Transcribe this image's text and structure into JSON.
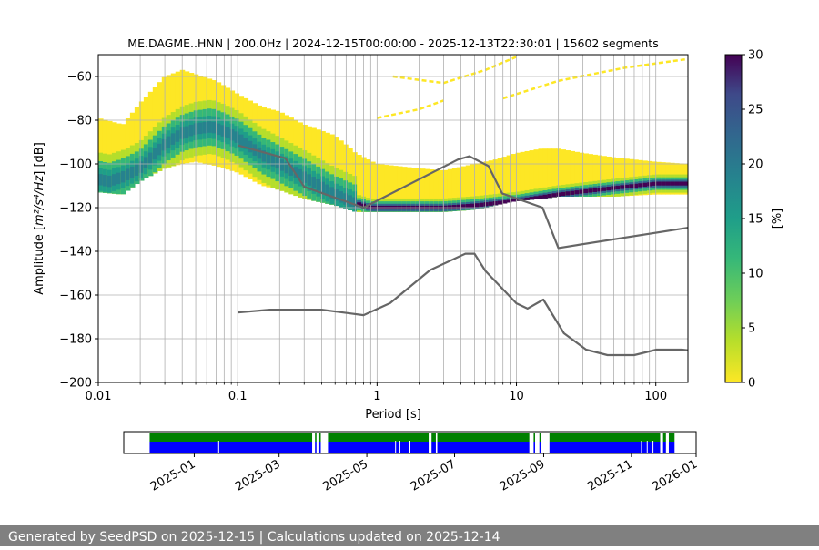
{
  "chart_data": {
    "type": "heatmap",
    "title": "ME.DAGME..HNN | 200.0Hz | 2024-12-15T00:00:00 - 2025-12-13T22:30:01 | 15602 segments",
    "xlabel": "Period [s]",
    "ylabel_prefix": "Amplitude [",
    "ylabel_math": "m²/s⁴/Hz",
    "ylabel_suffix": "] [dB]",
    "xscale": "log",
    "xlim": [
      0.01,
      170
    ],
    "ylim": [
      -200,
      -50
    ],
    "xticks": [
      {
        "value": 0.01,
        "label": "0.01"
      },
      {
        "value": 0.1,
        "label": "0.1"
      },
      {
        "value": 1,
        "label": "1"
      },
      {
        "value": 10,
        "label": "10"
      },
      {
        "value": 100,
        "label": "100"
      }
    ],
    "yticks": [
      {
        "value": -60,
        "label": "−60"
      },
      {
        "value": -80,
        "label": "−80"
      },
      {
        "value": -100,
        "label": "−100"
      },
      {
        "value": -120,
        "label": "−120"
      },
      {
        "value": -140,
        "label": "−140"
      },
      {
        "value": -160,
        "label": "−160"
      },
      {
        "value": -180,
        "label": "−180"
      },
      {
        "value": -200,
        "label": "−200"
      }
    ],
    "grid": true,
    "colorbar": {
      "label": "[%]",
      "range": [
        0,
        30
      ],
      "ticks": [
        {
          "value": 0,
          "label": "0"
        },
        {
          "value": 5,
          "label": "5"
        },
        {
          "value": 10,
          "label": "10"
        },
        {
          "value": 15,
          "label": "15"
        },
        {
          "value": 20,
          "label": "20"
        },
        {
          "value": 25,
          "label": "25"
        },
        {
          "value": 30,
          "label": "30"
        }
      ]
    },
    "psd_mode": {
      "name": "mode",
      "periods": [
        0.01,
        0.012,
        0.015,
        0.02,
        0.03,
        0.04,
        0.05,
        0.065,
        0.08,
        0.1,
        0.15,
        0.2,
        0.3,
        0.5,
        0.7,
        0.9,
        1.2,
        2,
        3,
        5,
        7,
        10,
        20,
        50,
        100,
        170
      ],
      "values": [
        -107,
        -108,
        -106,
        -102,
        -91,
        -86,
        -84,
        -83,
        -85,
        -88,
        -96,
        -100,
        -106,
        -114,
        -118,
        -120,
        -120,
        -120,
        -120,
        -119,
        -118,
        -117,
        -114,
        -111,
        -109,
        -109
      ]
    },
    "psd_band": {
      "name": "probability-spread",
      "periods": [
        0.01,
        0.015,
        0.02,
        0.03,
        0.04,
        0.05,
        0.07,
        0.1,
        0.15,
        0.2,
        0.3,
        0.5,
        0.7,
        1,
        2,
        3,
        5,
        7,
        10,
        15,
        20,
        30,
        50,
        100,
        170
      ],
      "upper": [
        -79,
        -82,
        -72,
        -60,
        -57,
        -59,
        -62,
        -68,
        -74,
        -76,
        -82,
        -87,
        -95,
        -100,
        -102,
        -103,
        -100,
        -98,
        -95,
        -93,
        -93,
        -95,
        -97,
        -99,
        -100
      ],
      "lower": [
        -113,
        -114,
        -108,
        -102,
        -100,
        -99,
        -101,
        -104,
        -110,
        -112,
        -116,
        -119,
        -122,
        -122,
        -122,
        -122,
        -121,
        -119,
        -117,
        -116,
        -115,
        -115,
        -115,
        -114,
        -114
      ]
    },
    "spurious_peaks": [
      {
        "periods": [
          1.3,
          3,
          6,
          10
        ],
        "values": [
          -60,
          -63,
          -57,
          -51
        ]
      },
      {
        "periods": [
          8,
          20,
          60,
          170
        ],
        "values": [
          -70,
          -62,
          -56,
          -52
        ]
      },
      {
        "periods": [
          1.0,
          2.0,
          3.0
        ],
        "values": [
          -79,
          -75,
          -71
        ]
      }
    ],
    "noise_models": [
      {
        "name": "NHNM",
        "periods": [
          0.1,
          0.22,
          0.3,
          0.8,
          3.8,
          4.6,
          6.3,
          7.9,
          15.4,
          20,
          354.8
        ],
        "values": [
          -91.5,
          -97.4,
          -110.5,
          -120,
          -98,
          -96.5,
          -101,
          -113.5,
          -120,
          -138.5,
          -126
        ]
      },
      {
        "name": "NLNM",
        "periods": [
          0.1,
          0.17,
          0.4,
          0.8,
          1.24,
          2.4,
          4.3,
          5,
          6,
          10,
          12,
          15.6,
          21.9,
          31.6,
          45,
          70,
          101,
          154,
          328
        ],
        "values": [
          -168,
          -166.7,
          -166.7,
          -169.2,
          -163.7,
          -148.6,
          -141.1,
          -141.1,
          -149,
          -163.8,
          -166.2,
          -162.1,
          -177.5,
          -185,
          -187.5,
          -187.5,
          -185,
          -185,
          -187.5
        ]
      }
    ],
    "availability": {
      "xlim_days": [
        -18,
        380
      ],
      "tick_labels": [
        {
          "day": 31,
          "label": "2025-01"
        },
        {
          "day": 90,
          "label": "2025-03"
        },
        {
          "day": 151,
          "label": "2025-05"
        },
        {
          "day": 212,
          "label": "2025-07"
        },
        {
          "day": 274,
          "label": "2025-09"
        },
        {
          "day": 335,
          "label": "2025-11"
        },
        {
          "day": 396,
          "label": "2026-01"
        }
      ],
      "data_segments_days": [
        [
          0,
          113
        ],
        [
          115,
          116
        ],
        [
          118,
          119
        ],
        [
          124,
          194
        ],
        [
          196,
          199
        ],
        [
          200,
          264
        ],
        [
          267,
          268
        ],
        [
          271,
          272
        ],
        [
          278,
          355
        ],
        [
          357,
          359
        ],
        [
          361,
          365
        ]
      ],
      "gap_markers_days": [
        48,
        171,
        174,
        181,
        342,
        346,
        350
      ]
    }
  },
  "colors": {
    "nlnm_nhnm": "#666666",
    "availability_data": "#0000ff",
    "availability_segments": "#008000",
    "grid": "#b0b0b0",
    "footer_bg": "#808080"
  },
  "footer": {
    "text": "Generated by SeedPSD on 2025-12-15 | Calculations updated on 2025-12-14"
  }
}
